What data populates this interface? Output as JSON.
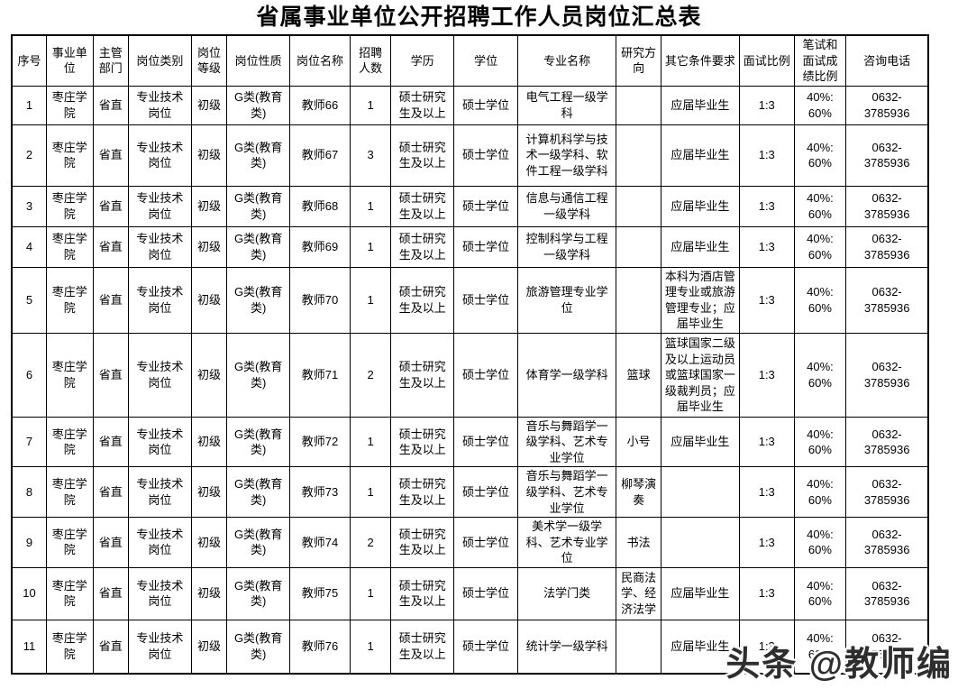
{
  "title": "省属事业单位公开招聘工作人员岗位汇总表",
  "watermark": "头条 @教师编",
  "table": {
    "headers": [
      "序号",
      "事业单位",
      "主管部门",
      "岗位类别",
      "岗位等级",
      "岗位性质",
      "岗位名称",
      "招聘人数",
      "学历",
      "学位",
      "专业名称",
      "研究方向",
      "其它条件要求",
      "面试比例",
      "笔试和面试成绩比例",
      "咨询电话"
    ],
    "rows": [
      [
        "1",
        "枣庄学院",
        "省直",
        "专业技术岗位",
        "初级",
        "G类(教育类)",
        "教师66",
        "1",
        "硕士研究生及以上",
        "硕士学位",
        "电气工程一级学科",
        "",
        "应届毕业生",
        "1:3",
        "40%: 60%",
        "0632-3785936"
      ],
      [
        "2",
        "枣庄学院",
        "省直",
        "专业技术岗位",
        "初级",
        "G类(教育类)",
        "教师67",
        "3",
        "硕士研究生及以上",
        "硕士学位",
        "计算机科学与技术一级学科、软件工程一级学科",
        "",
        "应届毕业生",
        "1:3",
        "40%: 60%",
        "0632-3785936"
      ],
      [
        "3",
        "枣庄学院",
        "省直",
        "专业技术岗位",
        "初级",
        "G类(教育类)",
        "教师68",
        "1",
        "硕士研究生及以上",
        "硕士学位",
        "信息与通信工程一级学科",
        "",
        "应届毕业生",
        "1:3",
        "40%: 60%",
        "0632-3785936"
      ],
      [
        "4",
        "枣庄学院",
        "省直",
        "专业技术岗位",
        "初级",
        "G类(教育类)",
        "教师69",
        "1",
        "硕士研究生及以上",
        "硕士学位",
        "控制科学与工程一级学科",
        "",
        "应届毕业生",
        "1:3",
        "40%: 60%",
        "0632-3785936"
      ],
      [
        "5",
        "枣庄学院",
        "省直",
        "专业技术岗位",
        "初级",
        "G类(教育类)",
        "教师70",
        "1",
        "硕士研究生及以上",
        "硕士学位",
        "旅游管理专业学位",
        "",
        "本科为酒店管理专业或旅游管理专业；应届毕业生",
        "1:3",
        "40%: 60%",
        "0632-3785936"
      ],
      [
        "6",
        "枣庄学院",
        "省直",
        "专业技术岗位",
        "初级",
        "G类(教育类)",
        "教师71",
        "2",
        "硕士研究生及以上",
        "硕士学位",
        "体育学一级学科",
        "篮球",
        "篮球国家二级及以上运动员或篮球国家一级裁判员；应届毕业生",
        "1:3",
        "40%: 60%",
        "0632-3785936"
      ],
      [
        "7",
        "枣庄学院",
        "省直",
        "专业技术岗位",
        "初级",
        "G类(教育类)",
        "教师72",
        "1",
        "硕士研究生及以上",
        "硕士学位",
        "音乐与舞蹈学一级学科、艺术专业学位",
        "小号",
        "应届毕业生",
        "1:3",
        "40%: 60%",
        "0632-3785936"
      ],
      [
        "8",
        "枣庄学院",
        "省直",
        "专业技术岗位",
        "初级",
        "G类(教育类)",
        "教师73",
        "1",
        "硕士研究生及以上",
        "硕士学位",
        "音乐与舞蹈学一级学科、艺术专业学位",
        "柳琴演奏",
        "",
        "1:3",
        "40%: 60%",
        "0632-3785936"
      ],
      [
        "9",
        "枣庄学院",
        "省直",
        "专业技术岗位",
        "初级",
        "G类(教育类)",
        "教师74",
        "2",
        "硕士研究生及以上",
        "硕士学位",
        "美术学一级学科、艺术专业学位",
        "书法",
        "",
        "1:3",
        "40%: 60%",
        "0632-3785936"
      ],
      [
        "10",
        "枣庄学院",
        "省直",
        "专业技术岗位",
        "初级",
        "G类(教育类)",
        "教师75",
        "1",
        "硕士研究生及以上",
        "硕士学位",
        "法学门类",
        "民商法学、经济法学",
        "应届毕业生",
        "1:3",
        "40%: 60%",
        "0632-3785936"
      ],
      [
        "11",
        "枣庄学院",
        "省直",
        "专业技术岗位",
        "初级",
        "G类(教育类)",
        "教师76",
        "1",
        "硕士研究生及以上",
        "硕士学位",
        "统计学一级学科",
        "",
        "应届毕业生",
        "1:3",
        "40%: 60%",
        "0632-3785936"
      ]
    ]
  }
}
